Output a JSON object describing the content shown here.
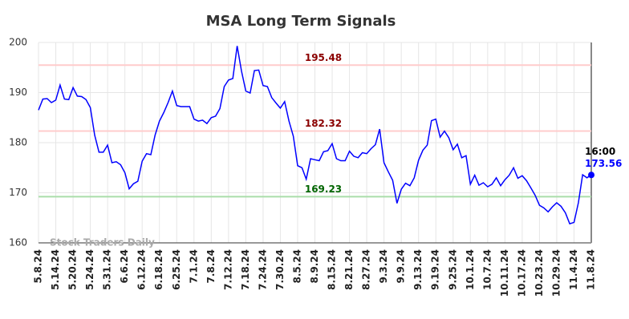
{
  "chart_data": {
    "type": "line",
    "title": "MSA Long Term Signals",
    "watermark": "Stock Traders Daily",
    "color": "#0000ff",
    "categories": [
      "5.8.24",
      null,
      null,
      null,
      "5.14.24",
      null,
      null,
      null,
      "5.20.24",
      null,
      null,
      null,
      "5.24.24",
      null,
      null,
      null,
      "5.31.24",
      null,
      null,
      null,
      "6.6.24",
      null,
      null,
      null,
      "6.12.24",
      null,
      null,
      null,
      "6.18.24",
      null,
      null,
      null,
      "6.25.24",
      null,
      null,
      null,
      "7.1.24",
      null,
      null,
      null,
      "7.8.24",
      null,
      null,
      null,
      "7.12.24",
      null,
      null,
      null,
      "7.18.24",
      null,
      null,
      null,
      "7.24.24",
      null,
      null,
      null,
      "7.30.24",
      null,
      null,
      null,
      "8.5.24",
      null,
      null,
      null,
      "8.9.24",
      null,
      null,
      null,
      "8.15.24",
      null,
      null,
      null,
      "8.21.24",
      null,
      null,
      null,
      "8.27.24",
      null,
      null,
      null,
      "9.3.24",
      null,
      null,
      null,
      "9.9.24",
      null,
      null,
      null,
      "9.13.24",
      null,
      null,
      null,
      "9.19.24",
      null,
      null,
      null,
      "9.25.24",
      null,
      null,
      null,
      "10.1.24",
      null,
      null,
      null,
      "10.7.24",
      null,
      null,
      null,
      "10.11.24",
      null,
      null,
      null,
      "10.17.24",
      null,
      null,
      null,
      "10.23.24",
      null,
      null,
      null,
      "10.29.24",
      null,
      null,
      null,
      "11.4.24",
      null,
      null,
      null,
      "11.8.24"
    ],
    "values": [
      186.5,
      188.7,
      188.8,
      188,
      188.5,
      191.5,
      188.7,
      188.6,
      191,
      189.3,
      189.2,
      188.6,
      187,
      181.5,
      178.1,
      178.1,
      179.5,
      176,
      176.2,
      175.6,
      174,
      170.8,
      171.8,
      172.3,
      176.3,
      177.8,
      177.6,
      181.5,
      184.3,
      186,
      188,
      190.3,
      187.4,
      187.2,
      187.2,
      187.2,
      184.7,
      184.3,
      184.5,
      183.8,
      185,
      185.3,
      186.8,
      191.2,
      192.5,
      192.8,
      199.3,
      194.3,
      190.3,
      189.9,
      194.4,
      194.5,
      191.4,
      191.2,
      189,
      187.9,
      186.9,
      188.2,
      184.3,
      181.3,
      175.4,
      175,
      172.7,
      176.8,
      176.6,
      176.4,
      178.2,
      178.4,
      179.8,
      176.8,
      176.4,
      176.4,
      178.3,
      177.3,
      177,
      178,
      177.8,
      178.8,
      179.6,
      182.7,
      176,
      174.2,
      172.5,
      167.9,
      170.7,
      171.9,
      171.4,
      173,
      176.5,
      178.5,
      179.5,
      184.4,
      184.7,
      181.1,
      182.3,
      181,
      178.6,
      179.7,
      177,
      177.4,
      171.7,
      173.5,
      171.5,
      172,
      171.2,
      171.7,
      173,
      171.4,
      172.6,
      173.5,
      175,
      172.9,
      173.4,
      172.4,
      171,
      169.5,
      167.5,
      167,
      166.2,
      167.2,
      168,
      167.3,
      166,
      163.8,
      164.1,
      168,
      173.6,
      173,
      173.56
    ],
    "ylim": [
      160,
      200
    ],
    "yticks": [
      160,
      170,
      180,
      190,
      200
    ],
    "grid": true,
    "levels": [
      {
        "value": 195.48,
        "line_color": "#ffcccc",
        "label_color": "#8b0000"
      },
      {
        "value": 182.32,
        "line_color": "#ffcccc",
        "label_color": "#8b0000"
      },
      {
        "value": 169.23,
        "line_color": "#aaddaa",
        "label_color": "#006400"
      }
    ],
    "end_time": "16:00"
  }
}
